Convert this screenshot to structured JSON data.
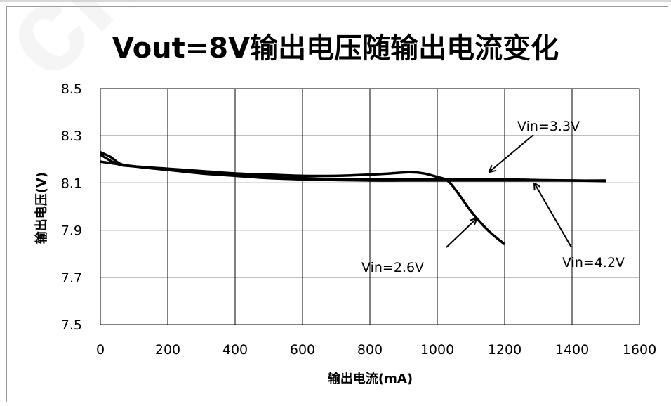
{
  "watermark": "chipc",
  "chart_data": {
    "type": "line",
    "title": "Vout=8V输出电压随输出电流变化",
    "xlabel": "输出电流(mA)",
    "ylabel": "输出电压(V)",
    "xlim": [
      0,
      1600
    ],
    "ylim": [
      7.5,
      8.5
    ],
    "xticks": [
      "0",
      "200",
      "400",
      "600",
      "800",
      "1000",
      "1200",
      "1400",
      "1600"
    ],
    "yticks": [
      "7.5",
      "7.7",
      "7.9",
      "8.1",
      "8.3",
      "8.5"
    ],
    "grid": true,
    "series": [
      {
        "name": "Vin=2.6V",
        "x": [
          0,
          50,
          100,
          200,
          300,
          400,
          500,
          600,
          700,
          800,
          860,
          920,
          960,
          1000,
          1030,
          1060,
          1100,
          1150,
          1200
        ],
        "y": [
          8.22,
          8.18,
          8.17,
          8.16,
          8.15,
          8.14,
          8.135,
          8.13,
          8.13,
          8.135,
          8.14,
          8.145,
          8.14,
          8.125,
          8.11,
          8.06,
          7.98,
          7.9,
          7.84
        ]
      },
      {
        "name": "Vin=3.3V",
        "x": [
          0,
          50,
          100,
          200,
          300,
          400,
          500,
          600,
          700,
          800,
          900,
          1000,
          1100,
          1200,
          1300,
          1400,
          1500
        ],
        "y": [
          8.19,
          8.18,
          8.17,
          8.155,
          8.145,
          8.135,
          8.125,
          8.12,
          8.115,
          8.115,
          8.115,
          8.115,
          8.115,
          8.115,
          8.112,
          8.11,
          8.11
        ]
      },
      {
        "name": "Vin=4.2V",
        "x": [
          0,
          30,
          60,
          100,
          200,
          300,
          400,
          500,
          600,
          700,
          800,
          900,
          1000,
          1100,
          1200,
          1300,
          1400,
          1500
        ],
        "y": [
          8.23,
          8.21,
          8.18,
          8.17,
          8.155,
          8.14,
          8.13,
          8.12,
          8.115,
          8.112,
          8.11,
          8.11,
          8.11,
          8.11,
          8.11,
          8.11,
          8.11,
          8.108
        ]
      }
    ],
    "annotations": [
      {
        "text": "Vin=3.3V",
        "x_value": 1150,
        "y_value": 8.15
      },
      {
        "text": "Vin=2.6V",
        "x_value": 1115,
        "y_value": 7.95
      },
      {
        "text": "Vin=4.2V",
        "x_value": 1290,
        "y_value": 8.09
      }
    ]
  }
}
